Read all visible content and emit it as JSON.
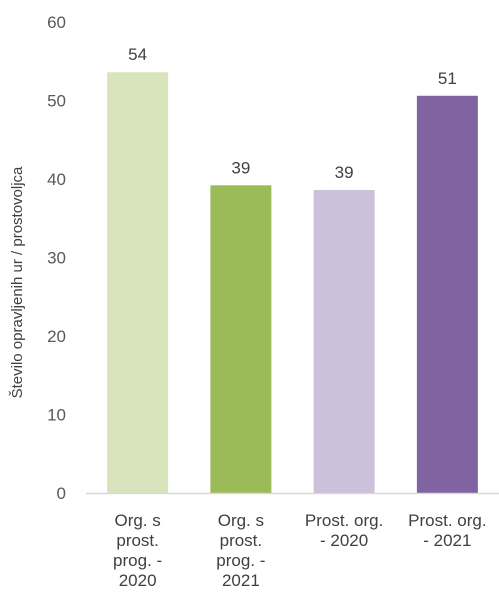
{
  "chart_data": {
    "type": "bar",
    "title": "",
    "xlabel": "",
    "ylabel": "Število opravljenih ur / prostovoljca",
    "ylim": [
      0,
      60
    ],
    "yticks": [
      0,
      10,
      20,
      30,
      40,
      50,
      60
    ],
    "grid": false,
    "categories": [
      [
        "Org. s",
        "prost.",
        "prog. -",
        "2020"
      ],
      [
        "Org. s",
        "prost.",
        "prog. -",
        "2021"
      ],
      [
        "Prost. org.",
        "- 2020"
      ],
      [
        "Prost. org.",
        "- 2021"
      ]
    ],
    "values": [
      53.6,
      39.2,
      38.6,
      50.6
    ],
    "data_labels": [
      "54",
      "39",
      "39",
      "51"
    ],
    "colors": [
      "#d9e4bd",
      "#9bbb59",
      "#ccc0da",
      "#8064a2"
    ],
    "axis_color": "#d9d9d9"
  }
}
